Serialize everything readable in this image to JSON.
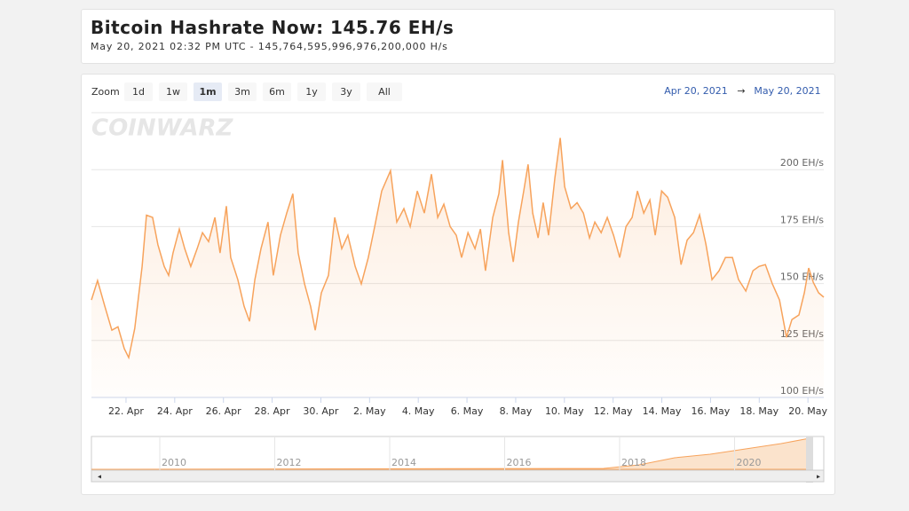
{
  "header": {
    "title": "Bitcoin Hashrate Now: 145.76 EH/s",
    "timestamp": "May 20, 2021 02:32 PM UTC",
    "separator": "-",
    "hashrate": "145,764,595,996,976,200,000 H/s"
  },
  "toolbar": {
    "zoom_label": "Zoom",
    "buttons": [
      "1d",
      "1w",
      "1m",
      "3m",
      "6m",
      "1y",
      "3y",
      "All"
    ],
    "selected_index": 2,
    "range_from": "Apr 20, 2021",
    "range_arrow": "→",
    "range_to": "May 20, 2021"
  },
  "watermark": "COINWARZ",
  "chart_data": {
    "type": "line",
    "color": "#f7a35c",
    "grid": true,
    "x": [
      0.58,
      0.83,
      1.13,
      1.42,
      1.67,
      1.93,
      2.11,
      2.36,
      2.66,
      2.84,
      3.09,
      3.31,
      3.57,
      3.75,
      3.93,
      4.19,
      4.41,
      4.66,
      4.92,
      5.14,
      5.39,
      5.65,
      5.86,
      6.12,
      6.3,
      6.59,
      6.85,
      7.07,
      7.29,
      7.54,
      7.83,
      8.05,
      8.34,
      8.6,
      8.85,
      9.07,
      9.33,
      9.58,
      9.77,
      10.02,
      10.31,
      10.57,
      10.86,
      11.11,
      11.41,
      11.66,
      11.95,
      12.21,
      12.5,
      12.86,
      13.12,
      13.41,
      13.67,
      13.96,
      14.25,
      14.54,
      14.8,
      15.05,
      15.31,
      15.56,
      15.78,
      16.04,
      16.33,
      16.55,
      16.76,
      17.06,
      17.31,
      17.46,
      17.71,
      17.9,
      18.11,
      18.33,
      18.51,
      18.7,
      18.92,
      19.13,
      19.35,
      19.61,
      19.83,
      20.01,
      20.27,
      20.52,
      20.78,
      21.03,
      21.25,
      21.51,
      21.76,
      22.02,
      22.27,
      22.53,
      22.78,
      23.0,
      23.26,
      23.51,
      23.73,
      23.99,
      24.24,
      24.53,
      24.79,
      25.04,
      25.3,
      25.55,
      25.81,
      26.06,
      26.35,
      26.61,
      26.9,
      27.15,
      27.45,
      27.74,
      27.99,
      28.25,
      28.54,
      28.83,
      29.12,
      29.34,
      29.63,
      29.85,
      30.03,
      30.22,
      30.44,
      30.65
    ],
    "values": [
      142.8,
      151.3,
      140,
      129.5,
      131,
      121.4,
      117.5,
      130.3,
      157.5,
      180,
      179,
      167,
      157.5,
      153.6,
      163.4,
      173.9,
      165.3,
      157.5,
      165.3,
      172.3,
      168.4,
      179,
      163.4,
      184,
      161.4,
      151.7,
      140,
      133.4,
      151.7,
      165.3,
      177,
      153.6,
      171.2,
      180.9,
      189.4,
      163.4,
      149.8,
      140,
      129.5,
      145.9,
      153.6,
      179,
      165.3,
      171.2,
      157.5,
      149.8,
      161.4,
      175,
      190.6,
      199.5,
      177,
      182.9,
      175,
      190.6,
      180.9,
      198,
      179,
      184.8,
      175,
      171.2,
      161.4,
      172.3,
      165.3,
      173.9,
      155.6,
      179,
      189.4,
      204.2,
      172.3,
      159.5,
      177,
      190.6,
      202.3,
      180.9,
      170,
      185.5,
      171.2,
      196.4,
      213.9,
      192.5,
      182.9,
      185.5,
      180.9,
      170,
      177,
      172.3,
      179,
      171.2,
      161.4,
      175,
      179,
      190.6,
      180.9,
      186.7,
      171.2,
      190.6,
      187.9,
      179,
      158.3,
      169.1,
      172.3,
      180.1,
      167.3,
      151.7,
      155.6,
      161.4,
      161.4,
      151.7,
      146.7,
      155.6,
      157.5,
      158.3,
      149.8,
      142.8,
      126.4,
      134.2,
      136.2,
      145.9,
      156.8,
      150.5,
      145.9,
      144
    ],
    "xlim": [
      0.58,
      30.65
    ],
    "xticks": [
      {
        "value": 2,
        "label": "22. Apr"
      },
      {
        "value": 4,
        "label": "24. Apr"
      },
      {
        "value": 6,
        "label": "26. Apr"
      },
      {
        "value": 8,
        "label": "28. Apr"
      },
      {
        "value": 10,
        "label": "30. Apr"
      },
      {
        "value": 12,
        "label": "2. May"
      },
      {
        "value": 14,
        "label": "4. May"
      },
      {
        "value": 16,
        "label": "6. May"
      },
      {
        "value": 18,
        "label": "8. May"
      },
      {
        "value": 20,
        "label": "10. May"
      },
      {
        "value": 22,
        "label": "12. May"
      },
      {
        "value": 24,
        "label": "14. May"
      },
      {
        "value": 26,
        "label": "16. May"
      },
      {
        "value": 28,
        "label": "18. May"
      },
      {
        "value": 30,
        "label": "20. May"
      }
    ],
    "ylim": [
      100,
      225
    ],
    "yticks": [
      {
        "value": 100,
        "label": "100 EH/s"
      },
      {
        "value": 125,
        "label": "125 EH/s"
      },
      {
        "value": 150,
        "label": "150 EH/s"
      },
      {
        "value": 175,
        "label": "175 EH/s"
      },
      {
        "value": 200,
        "label": "200 EH/s"
      }
    ]
  },
  "navigator": {
    "labels": [
      "2010",
      "2012",
      "2014",
      "2016",
      "2018",
      "2020"
    ]
  }
}
